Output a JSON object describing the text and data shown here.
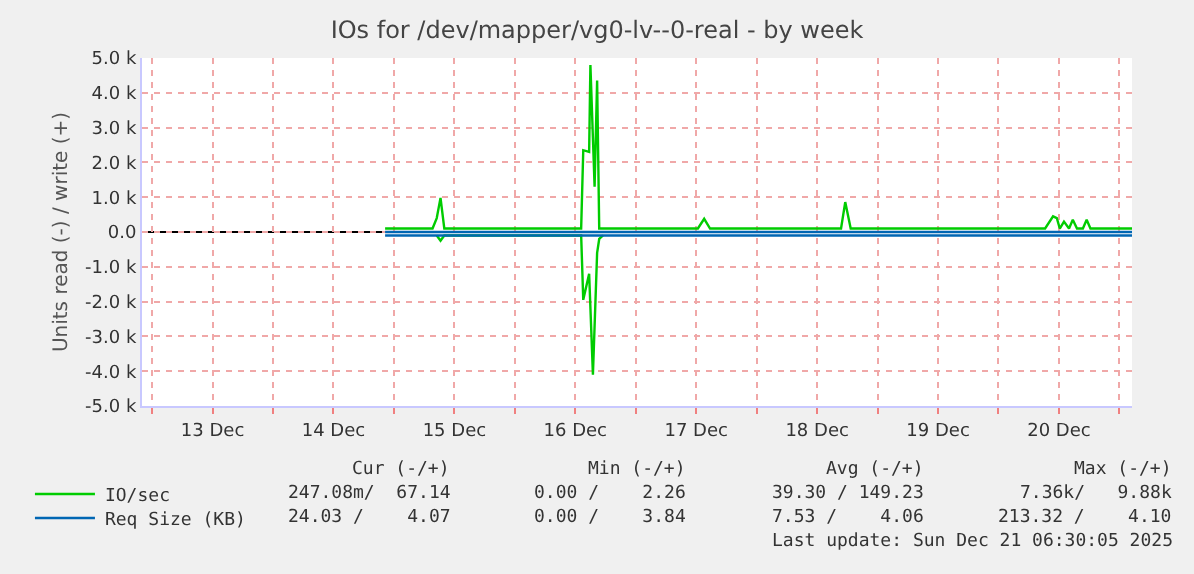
{
  "chart_data": {
    "type": "line",
    "title": "IOs for /dev/mapper/vg0-lv--0-real - by week",
    "ylabel": "Units read (-) / write (+)",
    "xlim": [
      "2025-12-12T22:00",
      "2025-12-21T02:30"
    ],
    "xticks": [
      {
        "value": "2025-12-13T00:00",
        "label": null
      },
      {
        "value": "2025-12-13T12:00",
        "label": "13 Dec"
      },
      {
        "value": "2025-12-14T00:00",
        "label": null
      },
      {
        "value": "2025-12-14T12:00",
        "label": "14 Dec"
      },
      {
        "value": "2025-12-15T00:00",
        "label": null
      },
      {
        "value": "2025-12-15T12:00",
        "label": "15 Dec"
      },
      {
        "value": "2025-12-16T00:00",
        "label": null
      },
      {
        "value": "2025-12-16T12:00",
        "label": "16 Dec"
      },
      {
        "value": "2025-12-17T00:00",
        "label": null
      },
      {
        "value": "2025-12-17T12:00",
        "label": "17 Dec"
      },
      {
        "value": "2025-12-18T00:00",
        "label": null
      },
      {
        "value": "2025-12-18T12:00",
        "label": "18 Dec"
      },
      {
        "value": "2025-12-19T00:00",
        "label": null
      },
      {
        "value": "2025-12-19T12:00",
        "label": "19 Dec"
      },
      {
        "value": "2025-12-20T00:00",
        "label": null
      },
      {
        "value": "2025-12-20T12:00",
        "label": "20 Dec"
      },
      {
        "value": "2025-12-21T00:00",
        "label": null
      }
    ],
    "ylim": [
      -5000,
      5000
    ],
    "yticks": [
      {
        "value": -5000,
        "label": "-5.0 k"
      },
      {
        "value": -4000,
        "label": "-4.0 k"
      },
      {
        "value": -3000,
        "label": "-3.0 k"
      },
      {
        "value": -2000,
        "label": "-2.0 k"
      },
      {
        "value": -1000,
        "label": "-1.0 k"
      },
      {
        "value": 0,
        "label": "0.0"
      },
      {
        "value": 1000,
        "label": "1.0 k"
      },
      {
        "value": 2000,
        "label": "2.0 k"
      },
      {
        "value": 3000,
        "label": "3.0 k"
      },
      {
        "value": 4000,
        "label": "4.0 k"
      },
      {
        "value": 5000,
        "label": "5.0 k"
      }
    ],
    "grid": true,
    "legend": "bottom left",
    "marker": "none",
    "line_style": "solid",
    "ref_lines": [
      {
        "axis": "y",
        "value": 0,
        "color": "#000000"
      }
    ],
    "series": [
      {
        "name": "IO/sec",
        "color": "#00cc00",
        "x": [
          "2025-12-14T22:15",
          "2025-12-15T07:40",
          "2025-12-15T08:30",
          "2025-12-15T09:15",
          "2025-12-15T10:00",
          "2025-12-15T10:50",
          "2025-12-16T13:10",
          "2025-12-16T13:35",
          "2025-12-16T14:45",
          "2025-12-16T15:00",
          "2025-12-16T15:50",
          "2025-12-16T16:20",
          "2025-12-16T16:45",
          "2025-12-16T17:30",
          "2025-12-17T12:20",
          "2025-12-17T13:35",
          "2025-12-17T14:45",
          "2025-12-18T16:45",
          "2025-12-18T17:35",
          "2025-12-18T18:40",
          "2025-12-20T09:15",
          "2025-12-20T10:50",
          "2025-12-20T11:35",
          "2025-12-20T12:10",
          "2025-12-20T13:00",
          "2025-12-20T14:00",
          "2025-12-20T14:45",
          "2025-12-20T15:35",
          "2025-12-20T16:45",
          "2025-12-20T17:30",
          "2025-12-20T18:15",
          "2025-12-21T02:30"
        ],
        "values": [
          100,
          100,
          400,
          980,
          100,
          100,
          100,
          2350,
          2300,
          4800,
          1300,
          4350,
          100,
          100,
          100,
          380,
          100,
          100,
          860,
          100,
          100,
          450,
          400,
          100,
          300,
          100,
          350,
          100,
          100,
          350,
          100,
          100
        ]
      },
      {
        "color": "#00cc00",
        "x": [
          "2025-12-15T08:30",
          "2025-12-15T09:15",
          "2025-12-15T10:00",
          "2025-12-16T13:10",
          "2025-12-16T13:35",
          "2025-12-16T14:45",
          "2025-12-16T15:30",
          "2025-12-16T16:20",
          "2025-12-16T16:45",
          "2025-12-16T17:30"
        ],
        "values": [
          -100,
          -250,
          -100,
          -100,
          -1950,
          -1200,
          -4100,
          -600,
          -200,
          -100
        ]
      },
      {
        "name": "Req Size (KB)",
        "color": "#0066b3",
        "x": [
          "2025-12-14T22:15",
          "2025-12-21T02:30"
        ],
        "values": [
          0,
          0
        ]
      },
      {
        "color": "#0066b3",
        "x": [
          "2025-12-14T22:15",
          "2025-12-21T02:30"
        ],
        "values": [
          -100,
          -100
        ]
      }
    ],
    "annotations": [
      "Cur (-/+)",
      "Min (-/+)",
      "Avg (-/+)",
      "Max (-/+)",
      "247.08m/  67.14",
      "0.00 /    2.26",
      "39.30 / 149.23",
      "7.36k/   9.88k",
      "24.03 /    4.07",
      "0.00 /    3.84",
      "7.53 /    4.06",
      "213.32 /    4.10",
      "Last update: Sun Dec 21 06:30:05 2025"
    ]
  }
}
